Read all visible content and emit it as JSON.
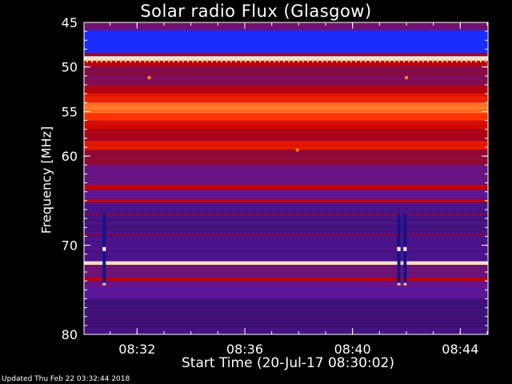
{
  "footer": {
    "updated": "Updated Thu Feb 22 03:32:44 2018"
  },
  "chart_data": {
    "type": "heatmap",
    "title": "Solar radio Flux (Glasgow)",
    "xlabel": "Start Time (20-Jul-17 08:30:02)",
    "ylabel": "Frequency [MHz]",
    "x_start": "08:30:02",
    "x_end": "08:45:02",
    "xlim_minutes": [
      30.03,
      45.03
    ],
    "xticks": [
      "08:32",
      "08:36",
      "08:40",
      "08:44"
    ],
    "xtick_minutes": [
      32,
      36,
      40,
      44
    ],
    "ylim": [
      45,
      80
    ],
    "y_inverted": true,
    "yticks": [
      45,
      50,
      55,
      60,
      70,
      80
    ],
    "ytick_values": [
      45,
      50,
      55,
      60,
      70,
      80
    ],
    "colormap": [
      "#000000",
      "#3a1070",
      "#5a18a0",
      "#8a0a3a",
      "#c80000",
      "#ff3000",
      "#ffa040",
      "#ffffff"
    ],
    "frequency_bands": [
      {
        "from": 45.0,
        "to": 45.9,
        "level": 0.35
      },
      {
        "from": 45.9,
        "to": 48.4,
        "level": 0.08
      },
      {
        "from": 48.4,
        "to": 48.8,
        "level": 0.45
      },
      {
        "from": 48.8,
        "to": 49.3,
        "level": 0.97
      },
      {
        "from": 49.3,
        "to": 49.9,
        "level": 0.55
      },
      {
        "from": 49.9,
        "to": 51.0,
        "level": 0.42
      },
      {
        "from": 51.0,
        "to": 52.0,
        "level": 0.38
      },
      {
        "from": 52.0,
        "to": 53.0,
        "level": 0.52
      },
      {
        "from": 53.0,
        "to": 54.0,
        "level": 0.66
      },
      {
        "from": 54.0,
        "to": 55.2,
        "level": 0.8
      },
      {
        "from": 55.2,
        "to": 56.0,
        "level": 0.72
      },
      {
        "from": 56.0,
        "to": 57.0,
        "level": 0.6
      },
      {
        "from": 57.0,
        "to": 58.3,
        "level": 0.5
      },
      {
        "from": 58.3,
        "to": 59.3,
        "level": 0.64
      },
      {
        "from": 59.3,
        "to": 61.0,
        "level": 0.45
      },
      {
        "from": 61.0,
        "to": 63.2,
        "level": 0.32
      },
      {
        "from": 63.2,
        "to": 63.8,
        "level": 0.55
      },
      {
        "from": 63.8,
        "to": 64.8,
        "level": 0.3
      },
      {
        "from": 64.8,
        "to": 65.2,
        "level": 0.55
      },
      {
        "from": 65.2,
        "to": 66.0,
        "level": 0.22
      },
      {
        "from": 66.0,
        "to": 69.0,
        "level": 0.2
      },
      {
        "from": 69.0,
        "to": 71.8,
        "level": 0.22
      },
      {
        "from": 71.8,
        "to": 72.2,
        "level": 0.96
      },
      {
        "from": 72.2,
        "to": 73.6,
        "level": 0.35
      },
      {
        "from": 73.6,
        "to": 74.0,
        "level": 0.55
      },
      {
        "from": 74.0,
        "to": 76.0,
        "level": 0.28
      },
      {
        "from": 76.0,
        "to": 80.0,
        "level": 0.18
      }
    ],
    "bursts": [
      {
        "minute": 30.78,
        "from": 66.5,
        "to": 74.5
      },
      {
        "minute": 41.72,
        "from": 66.5,
        "to": 74.5
      },
      {
        "minute": 41.95,
        "from": 66.5,
        "to": 74.5
      }
    ],
    "spikes": [
      {
        "minute": 32.45,
        "freq": 51.2
      },
      {
        "minute": 37.95,
        "freq": 59.3
      },
      {
        "minute": 42.0,
        "freq": 51.2
      }
    ],
    "calibration_marks_mhz": 49.3
  }
}
